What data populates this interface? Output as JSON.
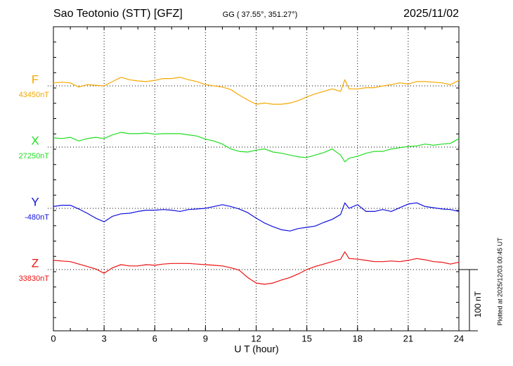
{
  "chart_data": {
    "type": "line",
    "title": "Sao Teotonio (STT)  [GFZ]",
    "subtitle": "GG ( 37.55°, 351.27°)",
    "date": "2025/11/02",
    "xlabel": "U T (hour)",
    "note": "Plotted at 2025/12/03 00:45 UT",
    "grid": true,
    "xlim": [
      0,
      24
    ],
    "xticks": [
      0,
      3,
      6,
      9,
      12,
      15,
      18,
      21,
      24
    ],
    "scale_bar": {
      "value": 100,
      "label": "100 nT"
    },
    "x": [
      0,
      0.5,
      1,
      1.5,
      2,
      2.5,
      3,
      3.5,
      4,
      4.5,
      5,
      5.5,
      6,
      6.5,
      7,
      7.5,
      8,
      8.5,
      9,
      9.5,
      10,
      10.5,
      11,
      11.5,
      12,
      12.5,
      13,
      13.5,
      14,
      14.5,
      15,
      15.5,
      16,
      16.5,
      17,
      17.25,
      17.5,
      18,
      18.5,
      19,
      19.5,
      20,
      20.5,
      21,
      21.5,
      22,
      22.5,
      23,
      23.5,
      24
    ],
    "series": [
      {
        "name": "F",
        "color": "#f5a800",
        "baseline": {
          "value": 43450,
          "label": "43450nT"
        },
        "values": [
          43455,
          43456,
          43455,
          43448,
          43452,
          43451,
          43450,
          43457,
          43464,
          43460,
          43458,
          43457,
          43459,
          43462,
          43462,
          43464,
          43460,
          43457,
          43452,
          43450,
          43448,
          43444,
          43435,
          43427,
          43420,
          43422,
          43420,
          43420,
          43422,
          43426,
          43432,
          43437,
          43441,
          43445,
          43441,
          43460,
          43445,
          43445,
          43447,
          43447,
          43450,
          43452,
          43455,
          43453,
          43457,
          43457,
          43456,
          43455,
          43452,
          43459
        ]
      },
      {
        "name": "X",
        "color": "#22dd22",
        "baseline": {
          "value": 27250,
          "label": "27250nT"
        },
        "values": [
          27265,
          27264,
          27266,
          27260,
          27264,
          27266,
          27264,
          27270,
          27274,
          27272,
          27272,
          27273,
          27271,
          27272,
          27272,
          27272,
          27270,
          27268,
          27263,
          27260,
          27255,
          27247,
          27243,
          27242,
          27245,
          27247,
          27242,
          27240,
          27237,
          27234,
          27233,
          27237,
          27241,
          27247,
          27237,
          27226,
          27232,
          27235,
          27240,
          27243,
          27243,
          27247,
          27249,
          27251,
          27252,
          27255,
          27253,
          27255,
          27256,
          27264
        ]
      },
      {
        "name": "Y",
        "color": "#1010dd",
        "baseline": {
          "value": -480,
          "label": "-480nT"
        },
        "values": [
          -477,
          -475,
          -475,
          -481,
          -488,
          -496,
          -502,
          -493,
          -489,
          -488,
          -485,
          -483,
          -483,
          -482,
          -483,
          -485,
          -482,
          -481,
          -480,
          -477,
          -474,
          -477,
          -481,
          -487,
          -496,
          -504,
          -510,
          -515,
          -517,
          -513,
          -511,
          -509,
          -503,
          -498,
          -490,
          -471,
          -480,
          -474,
          -485,
          -485,
          -482,
          -485,
          -479,
          -473,
          -471,
          -477,
          -479,
          -481,
          -482,
          -485
        ]
      },
      {
        "name": "Z",
        "color": "#ee1111",
        "baseline": {
          "value": 33830,
          "label": "33830nT"
        },
        "values": [
          33845,
          33844,
          33843,
          33839,
          33835,
          33831,
          33824,
          33833,
          33838,
          33836,
          33836,
          33838,
          33837,
          33839,
          33840,
          33840,
          33840,
          33839,
          33838,
          33837,
          33836,
          33833,
          33829,
          33817,
          33808,
          33806,
          33808,
          33813,
          33817,
          33823,
          33830,
          33835,
          33839,
          33843,
          33847,
          33859,
          33848,
          33847,
          33845,
          33843,
          33843,
          33844,
          33843,
          33845,
          33848,
          33846,
          33843,
          33842,
          33839,
          33842
        ]
      }
    ]
  }
}
